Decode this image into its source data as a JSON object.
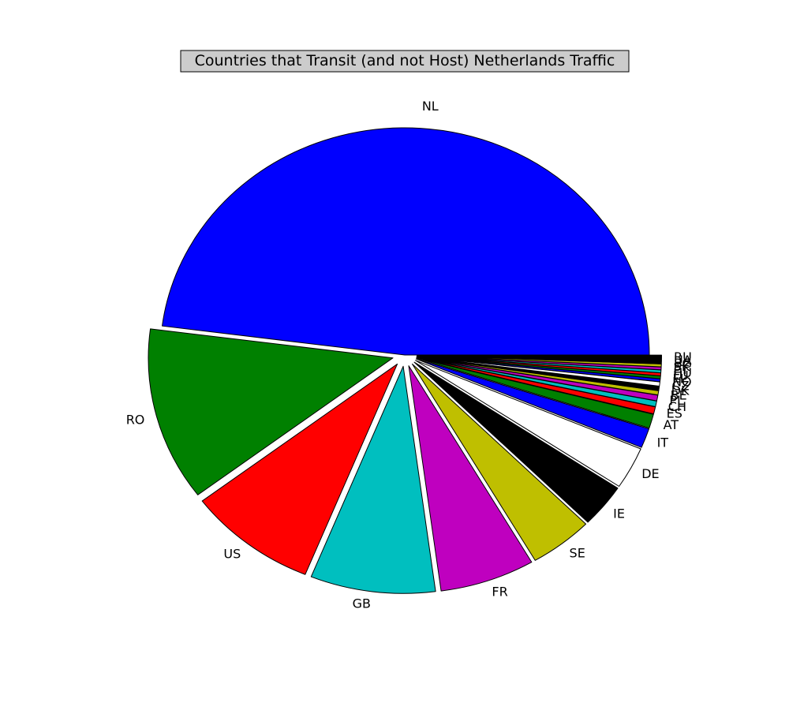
{
  "chart_data": {
    "type": "pie",
    "title": "Countries that Transit (and not Host) Netherlands Traffic",
    "start_angle_deg": 0,
    "direction": "counterclockwise",
    "slices": [
      {
        "label": "NL",
        "value": 48.2,
        "color": "#0000ff",
        "exploded": false
      },
      {
        "label": "RO",
        "value": 12.4,
        "color": "#008000",
        "exploded": true
      },
      {
        "label": "US",
        "value": 8.6,
        "color": "#ff0000",
        "exploded": true
      },
      {
        "label": "GB",
        "value": 8.3,
        "color": "#00bfbf",
        "exploded": true
      },
      {
        "label": "FR",
        "value": 6.3,
        "color": "#bf00bf",
        "exploded": true
      },
      {
        "label": "SE",
        "value": 4.2,
        "color": "#bfbf00",
        "exploded": true
      },
      {
        "label": "IE",
        "value": 3.1,
        "color": "#000000",
        "exploded": true
      },
      {
        "label": "DE",
        "value": 3.0,
        "color": "#ffffff",
        "exploded": true
      },
      {
        "label": "IT",
        "value": 1.4,
        "color": "#0000ff",
        "exploded": true
      },
      {
        "label": "AT",
        "value": 1.0,
        "color": "#008000",
        "exploded": true
      },
      {
        "label": "ES",
        "value": 0.5,
        "color": "#ff0000",
        "exploded": true
      },
      {
        "label": "CH",
        "value": 0.4,
        "color": "#00bfbf",
        "exploded": true
      },
      {
        "label": "PL",
        "value": 0.4,
        "color": "#bf00bf",
        "exploded": true
      },
      {
        "label": "BE",
        "value": 0.3,
        "color": "#bfbf00",
        "exploded": true
      },
      {
        "label": "DK",
        "value": 0.3,
        "color": "#000000",
        "exploded": true
      },
      {
        "label": "CZ",
        "value": 0.3,
        "color": "#ffffff",
        "exploded": true
      },
      {
        "label": "NO",
        "value": 0.2,
        "color": "#0000ff",
        "exploded": true
      },
      {
        "label": "FI",
        "value": 0.2,
        "color": "#008000",
        "exploded": true
      },
      {
        "label": "LU",
        "value": 0.2,
        "color": "#ff0000",
        "exploded": true
      },
      {
        "label": "HU",
        "value": 0.2,
        "color": "#00bfbf",
        "exploded": true
      },
      {
        "label": "PT",
        "value": 0.2,
        "color": "#bf00bf",
        "exploded": true
      },
      {
        "label": "SK",
        "value": 0.2,
        "color": "#bfbf00",
        "exploded": true
      },
      {
        "label": "BG",
        "value": 0.2,
        "color": "#000000",
        "exploded": true
      },
      {
        "label": "UA",
        "value": 0.2,
        "color": "#000000",
        "exploded": true
      },
      {
        "label": "RU",
        "value": 0.2,
        "color": "#000000",
        "exploded": true
      }
    ]
  }
}
